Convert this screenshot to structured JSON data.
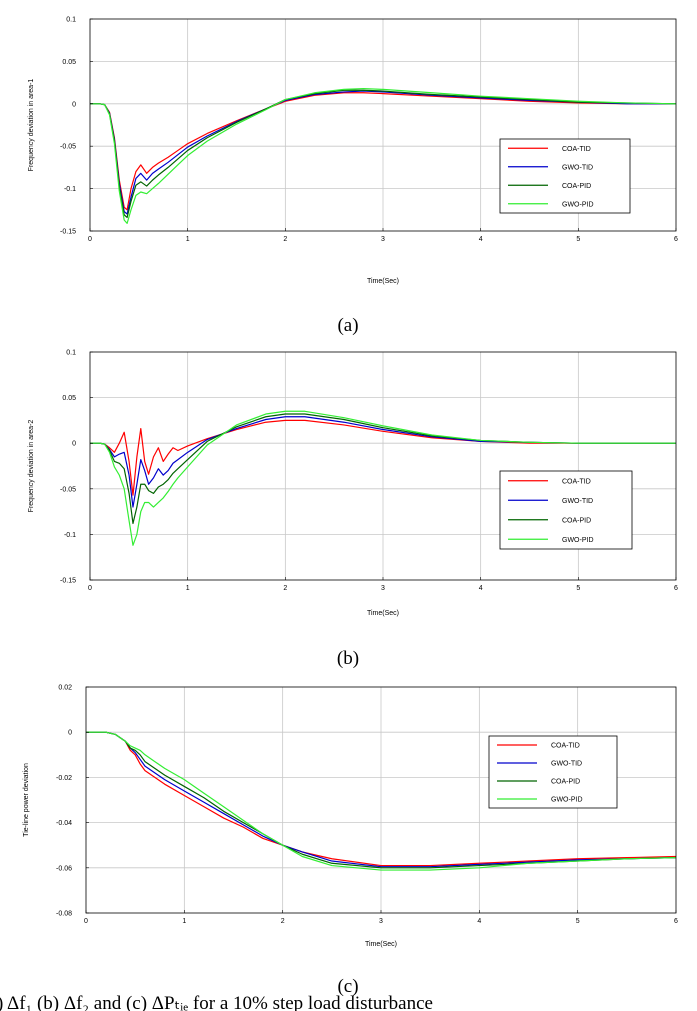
{
  "colors": {
    "COA-TID": "#ff0000",
    "GWO-TID": "#0000cc",
    "COA-PID": "#006400",
    "GWO-PID": "#33ee33"
  },
  "caption_fragment": ") Δf₁ (b) Δf₂ and (c) ΔPₜᵢₑ for a 10% step load disturbance",
  "chart_data": [
    {
      "type": "line",
      "sublabel": "(a)",
      "xlabel": "Time(Sec)",
      "ylabel": "Frequency deviation in area-1",
      "xlim": [
        0,
        6
      ],
      "ylim": [
        -0.15,
        0.1
      ],
      "xticks": [
        0,
        1,
        2,
        3,
        4,
        5,
        6
      ],
      "xtick_labels": [
        "0",
        "1",
        "2",
        "3",
        "4",
        "5",
        "6"
      ],
      "yticks": [
        -0.15,
        -0.1,
        -0.05,
        0,
        0.05,
        0.1
      ],
      "ytick_labels": [
        "-0.15",
        "-0.1",
        "-0.05",
        "0",
        "0.05",
        "0.1"
      ],
      "grid": true,
      "legend": "right",
      "series": [
        {
          "name": "COA-TID",
          "x": [
            0,
            0.1,
            0.15,
            0.2,
            0.25,
            0.3,
            0.35,
            0.38,
            0.42,
            0.47,
            0.52,
            0.58,
            0.64,
            0.7,
            0.8,
            0.9,
            1,
            1.2,
            1.5,
            1.8,
            2,
            2.3,
            2.6,
            2.8,
            3,
            3.5,
            4,
            4.5,
            5,
            5.5,
            6
          ],
          "y": [
            0,
            0,
            -0.001,
            -0.01,
            -0.04,
            -0.09,
            -0.122,
            -0.125,
            -0.1,
            -0.08,
            -0.072,
            -0.082,
            -0.075,
            -0.07,
            -0.063,
            -0.055,
            -0.047,
            -0.035,
            -0.02,
            -0.006,
            0.003,
            0.01,
            0.013,
            0.013,
            0.012,
            0.009,
            0.006,
            0.003,
            0.001,
            0,
            0
          ]
        },
        {
          "name": "GWO-TID",
          "x": [
            0,
            0.1,
            0.15,
            0.2,
            0.25,
            0.3,
            0.35,
            0.38,
            0.42,
            0.47,
            0.52,
            0.58,
            0.64,
            0.7,
            0.8,
            0.9,
            1,
            1.2,
            1.5,
            1.8,
            2,
            2.3,
            2.6,
            2.8,
            3,
            3.5,
            4,
            4.5,
            5,
            5.5,
            6
          ],
          "y": [
            0,
            0,
            -0.001,
            -0.011,
            -0.042,
            -0.094,
            -0.127,
            -0.13,
            -0.11,
            -0.088,
            -0.082,
            -0.09,
            -0.082,
            -0.077,
            -0.069,
            -0.06,
            -0.051,
            -0.038,
            -0.021,
            -0.006,
            0.004,
            0.011,
            0.014,
            0.015,
            0.014,
            0.01,
            0.007,
            0.004,
            0.002,
            0,
            0
          ]
        },
        {
          "name": "COA-PID",
          "x": [
            0,
            0.1,
            0.15,
            0.2,
            0.25,
            0.3,
            0.35,
            0.38,
            0.42,
            0.47,
            0.52,
            0.58,
            0.64,
            0.7,
            0.8,
            0.9,
            1,
            1.2,
            1.5,
            1.8,
            2,
            2.3,
            2.6,
            2.8,
            3,
            3.5,
            4,
            4.5,
            5,
            5.5,
            6
          ],
          "y": [
            0,
            0,
            -0.001,
            -0.012,
            -0.044,
            -0.098,
            -0.131,
            -0.134,
            -0.115,
            -0.096,
            -0.092,
            -0.097,
            -0.09,
            -0.084,
            -0.075,
            -0.065,
            -0.055,
            -0.04,
            -0.022,
            -0.006,
            0.005,
            0.012,
            0.016,
            0.016,
            0.015,
            0.011,
            0.008,
            0.005,
            0.002,
            0.001,
            0
          ]
        },
        {
          "name": "GWO-PID",
          "x": [
            0,
            0.1,
            0.15,
            0.2,
            0.25,
            0.3,
            0.35,
            0.38,
            0.42,
            0.47,
            0.52,
            0.58,
            0.64,
            0.7,
            0.8,
            0.9,
            1,
            1.2,
            1.5,
            1.8,
            2,
            2.3,
            2.6,
            2.8,
            3,
            3.5,
            4,
            4.5,
            5,
            5.5,
            6
          ],
          "y": [
            0,
            0,
            -0.001,
            -0.013,
            -0.047,
            -0.103,
            -0.137,
            -0.141,
            -0.125,
            -0.108,
            -0.104,
            -0.106,
            -0.1,
            -0.094,
            -0.083,
            -0.072,
            -0.061,
            -0.044,
            -0.024,
            -0.007,
            0.005,
            0.013,
            0.017,
            0.018,
            0.017,
            0.013,
            0.009,
            0.006,
            0.003,
            0.001,
            0
          ]
        }
      ],
      "legend_entries": [
        "COA-TID",
        "GWO-TID",
        "COA-PID",
        "GWO-PID"
      ]
    },
    {
      "type": "line",
      "sublabel": "(b)",
      "xlabel": "Time(Sec)",
      "ylabel": "Frequency deviation in area-2",
      "xlim": [
        0,
        6
      ],
      "ylim": [
        -0.15,
        0.1
      ],
      "xticks": [
        0,
        1,
        2,
        3,
        4,
        5,
        6
      ],
      "xtick_labels": [
        "0",
        "1",
        "2",
        "3",
        "4",
        "5",
        "6"
      ],
      "yticks": [
        -0.15,
        -0.1,
        -0.05,
        0,
        0.05,
        0.1
      ],
      "ytick_labels": [
        "-0.15",
        "-0.1",
        "-0.05",
        "0",
        "0.05",
        "0.1"
      ],
      "grid": true,
      "legend": "right",
      "series": [
        {
          "name": "COA-TID",
          "x": [
            0,
            0.1,
            0.15,
            0.2,
            0.25,
            0.3,
            0.35,
            0.4,
            0.44,
            0.48,
            0.52,
            0.56,
            0.6,
            0.65,
            0.7,
            0.75,
            0.8,
            0.85,
            0.9,
            1,
            1.2,
            1.5,
            1.8,
            2,
            2.2,
            2.6,
            3,
            3.5,
            4,
            4.5,
            5,
            5.5,
            6
          ],
          "y": [
            0,
            0,
            -0.001,
            -0.005,
            -0.01,
            0,
            0.012,
            -0.02,
            -0.057,
            -0.015,
            0.016,
            -0.02,
            -0.034,
            -0.015,
            -0.005,
            -0.02,
            -0.012,
            -0.005,
            -0.008,
            -0.003,
            0.005,
            0.015,
            0.023,
            0.025,
            0.025,
            0.02,
            0.013,
            0.006,
            0.002,
            0,
            0,
            0,
            0
          ]
        },
        {
          "name": "GWO-TID",
          "x": [
            0,
            0.1,
            0.15,
            0.2,
            0.25,
            0.3,
            0.35,
            0.4,
            0.44,
            0.48,
            0.52,
            0.56,
            0.6,
            0.65,
            0.7,
            0.75,
            0.8,
            0.85,
            0.9,
            1,
            1.2,
            1.5,
            1.8,
            2,
            2.2,
            2.6,
            3,
            3.5,
            4,
            4.5,
            5,
            5.5,
            6
          ],
          "y": [
            0,
            0,
            -0.001,
            -0.007,
            -0.015,
            -0.012,
            -0.01,
            -0.035,
            -0.07,
            -0.045,
            -0.018,
            -0.03,
            -0.045,
            -0.038,
            -0.028,
            -0.035,
            -0.03,
            -0.022,
            -0.018,
            -0.01,
            0.004,
            0.016,
            0.026,
            0.029,
            0.029,
            0.023,
            0.015,
            0.007,
            0.002,
            0.001,
            0,
            0,
            0
          ]
        },
        {
          "name": "COA-PID",
          "x": [
            0,
            0.1,
            0.15,
            0.2,
            0.25,
            0.3,
            0.35,
            0.4,
            0.44,
            0.48,
            0.52,
            0.56,
            0.6,
            0.65,
            0.7,
            0.75,
            0.8,
            0.85,
            0.9,
            1,
            1.2,
            1.5,
            1.8,
            2,
            2.2,
            2.6,
            3,
            3.5,
            4,
            4.5,
            5,
            5.5,
            6
          ],
          "y": [
            0,
            0,
            -0.001,
            -0.008,
            -0.02,
            -0.022,
            -0.028,
            -0.055,
            -0.088,
            -0.07,
            -0.045,
            -0.045,
            -0.052,
            -0.055,
            -0.048,
            -0.045,
            -0.04,
            -0.033,
            -0.028,
            -0.018,
            0.002,
            0.018,
            0.029,
            0.032,
            0.032,
            0.026,
            0.017,
            0.008,
            0.003,
            0.001,
            0,
            0,
            0
          ]
        },
        {
          "name": "GWO-PID",
          "x": [
            0,
            0.1,
            0.15,
            0.2,
            0.25,
            0.3,
            0.35,
            0.4,
            0.44,
            0.48,
            0.52,
            0.56,
            0.6,
            0.65,
            0.7,
            0.75,
            0.8,
            0.85,
            0.9,
            1,
            1.2,
            1.5,
            1.8,
            2,
            2.2,
            2.6,
            3,
            3.5,
            4,
            4.5,
            5,
            5.5,
            6
          ],
          "y": [
            0,
            0,
            -0.001,
            -0.01,
            -0.026,
            -0.035,
            -0.05,
            -0.085,
            -0.112,
            -0.1,
            -0.075,
            -0.065,
            -0.065,
            -0.07,
            -0.065,
            -0.06,
            -0.053,
            -0.045,
            -0.038,
            -0.026,
            -0.002,
            0.02,
            0.032,
            0.035,
            0.035,
            0.028,
            0.019,
            0.009,
            0.003,
            0.001,
            0,
            0,
            0
          ]
        }
      ],
      "legend_entries": [
        "COA-TID",
        "GWO-TID",
        "COA-PID",
        "GWO-PID"
      ]
    },
    {
      "type": "line",
      "sublabel": "(c)",
      "xlabel": "Time(Sec)",
      "ylabel": "Tie-line power deviation",
      "xlim": [
        0,
        6
      ],
      "ylim": [
        -0.08,
        0.02
      ],
      "xticks": [
        0,
        1,
        2,
        3,
        4,
        5,
        6
      ],
      "xtick_labels": [
        "0",
        "1",
        "2",
        "3",
        "4",
        "5",
        "6"
      ],
      "yticks": [
        -0.08,
        -0.06,
        -0.04,
        -0.02,
        0,
        0.02
      ],
      "ytick_labels": [
        "-0.08",
        "-0.06",
        "-0.04",
        "-0.02",
        "0",
        "0.02"
      ],
      "grid": true,
      "legend": "top-right",
      "series": [
        {
          "name": "COA-TID",
          "x": [
            0,
            0.2,
            0.3,
            0.4,
            0.45,
            0.5,
            0.55,
            0.6,
            0.7,
            0.8,
            1,
            1.2,
            1.4,
            1.6,
            1.8,
            2,
            2.2,
            2.5,
            3,
            3.5,
            4,
            4.5,
            5,
            5.5,
            6
          ],
          "y": [
            0,
            0,
            -0.001,
            -0.004,
            -0.008,
            -0.01,
            -0.014,
            -0.017,
            -0.02,
            -0.023,
            -0.028,
            -0.033,
            -0.038,
            -0.042,
            -0.047,
            -0.05,
            -0.053,
            -0.056,
            -0.059,
            -0.059,
            -0.058,
            -0.057,
            -0.056,
            -0.0555,
            -0.055
          ]
        },
        {
          "name": "GWO-TID",
          "x": [
            0,
            0.2,
            0.3,
            0.4,
            0.45,
            0.5,
            0.55,
            0.6,
            0.7,
            0.8,
            1,
            1.2,
            1.4,
            1.6,
            1.8,
            2,
            2.2,
            2.5,
            3,
            3.5,
            4,
            4.5,
            5,
            5.5,
            6
          ],
          "y": [
            0,
            0,
            -0.001,
            -0.004,
            -0.007,
            -0.009,
            -0.012,
            -0.015,
            -0.018,
            -0.021,
            -0.026,
            -0.031,
            -0.036,
            -0.041,
            -0.046,
            -0.05,
            -0.053,
            -0.057,
            -0.0595,
            -0.0595,
            -0.0585,
            -0.0575,
            -0.0565,
            -0.056,
            -0.0555
          ]
        },
        {
          "name": "COA-PID",
          "x": [
            0,
            0.2,
            0.3,
            0.4,
            0.45,
            0.5,
            0.55,
            0.6,
            0.7,
            0.8,
            1,
            1.2,
            1.4,
            1.6,
            1.8,
            2,
            2.2,
            2.5,
            3,
            3.5,
            4,
            4.5,
            5,
            5.5,
            6
          ],
          "y": [
            0,
            0,
            -0.001,
            -0.004,
            -0.007,
            -0.008,
            -0.01,
            -0.013,
            -0.016,
            -0.019,
            -0.024,
            -0.029,
            -0.035,
            -0.04,
            -0.045,
            -0.05,
            -0.054,
            -0.058,
            -0.06,
            -0.06,
            -0.059,
            -0.058,
            -0.057,
            -0.056,
            -0.0555
          ]
        },
        {
          "name": "GWO-PID",
          "x": [
            0,
            0.2,
            0.3,
            0.4,
            0.45,
            0.5,
            0.55,
            0.6,
            0.7,
            0.8,
            1,
            1.2,
            1.4,
            1.6,
            1.8,
            2,
            2.2,
            2.5,
            3,
            3.5,
            4,
            4.5,
            5,
            5.5,
            6
          ],
          "y": [
            0,
            0,
            -0.001,
            -0.004,
            -0.006,
            -0.007,
            -0.008,
            -0.01,
            -0.013,
            -0.016,
            -0.021,
            -0.027,
            -0.033,
            -0.039,
            -0.045,
            -0.05,
            -0.055,
            -0.059,
            -0.061,
            -0.061,
            -0.06,
            -0.058,
            -0.057,
            -0.056,
            -0.0555
          ]
        }
      ],
      "legend_entries": [
        "COA-TID",
        "GWO-TID",
        "COA-PID",
        "GWO-PID"
      ]
    }
  ]
}
